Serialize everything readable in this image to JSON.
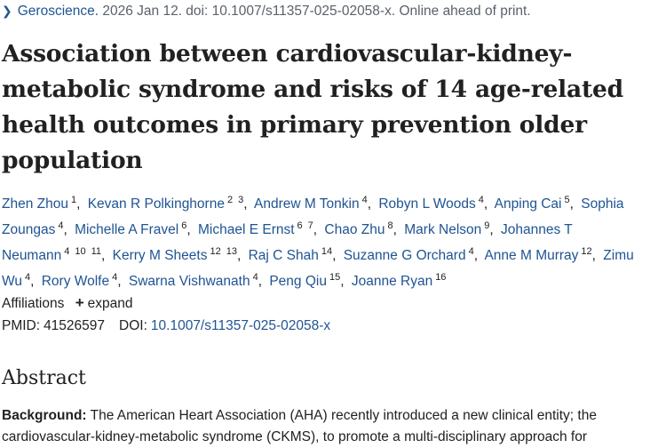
{
  "journal": {
    "name": "Geroscience.",
    "citation": " 2026 Jan 12. doi: 10.1007/s11357-025-02058-x. Online ahead of print."
  },
  "article": {
    "title": "Association between cardiovascular-kidney-metabolic syndrome and risks of 14 age-related health outcomes in primary prevention older population"
  },
  "authors": [
    {
      "name": "Zhen Zhou",
      "affs": [
        "1"
      ]
    },
    {
      "name": "Kevan R Polkinghorne",
      "affs": [
        "2",
        "3"
      ]
    },
    {
      "name": "Andrew M Tonkin",
      "affs": [
        "4"
      ]
    },
    {
      "name": "Robyn L Woods",
      "affs": [
        "4"
      ]
    },
    {
      "name": "Anping Cai",
      "affs": [
        "5"
      ]
    },
    {
      "name": "Sophia Zoungas",
      "affs": [
        "4"
      ]
    },
    {
      "name": "Michelle A Fravel",
      "affs": [
        "6"
      ]
    },
    {
      "name": "Michael E Ernst",
      "affs": [
        "6",
        "7"
      ]
    },
    {
      "name": "Chao Zhu",
      "affs": [
        "8"
      ]
    },
    {
      "name": "Mark Nelson",
      "affs": [
        "9"
      ]
    },
    {
      "name": "Johannes T Neumann",
      "affs": [
        "4",
        "10",
        "11"
      ]
    },
    {
      "name": "Kerry M Sheets",
      "affs": [
        "12",
        "13"
      ]
    },
    {
      "name": "Raj C Shah",
      "affs": [
        "14"
      ]
    },
    {
      "name": "Suzanne G Orchard",
      "affs": [
        "4"
      ]
    },
    {
      "name": "Anne M Murray",
      "affs": [
        "12"
      ]
    },
    {
      "name": "Zimu Wu",
      "affs": [
        "4"
      ]
    },
    {
      "name": "Rory Wolfe",
      "affs": [
        "4"
      ]
    },
    {
      "name": "Swarna Vishwanath",
      "affs": [
        "4"
      ]
    },
    {
      "name": "Peng Qiu",
      "affs": [
        "15"
      ]
    },
    {
      "name": "Joanne Ryan",
      "affs": [
        "16"
      ]
    }
  ],
  "affiliations": {
    "label": "Affiliations",
    "expand_label": "expand"
  },
  "identifiers": {
    "pmid_label": "PMID:",
    "pmid": "41526597",
    "doi_label": "DOI:",
    "doi": "10.1007/s11357-025-02058-x"
  },
  "abstract": {
    "heading": "Abstract",
    "background_label": "Background:",
    "background_text": " The American Heart Association (AHA) recently introduced a new clinical entity; the cardiovascular-kidney-metabolic syndrome (CKMS), to promote a multi-disciplinary approach for"
  },
  "colors": {
    "link": "#205493",
    "text": "#212121",
    "muted": "#5b616b"
  },
  "icons": {
    "journal_chevron": "chevron-right-icon",
    "expand": "plus-icon"
  }
}
